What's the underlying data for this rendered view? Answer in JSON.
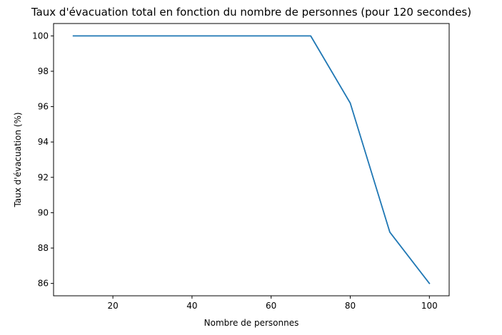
{
  "chart_data": {
    "type": "line",
    "title": "Taux d'évacuation total en fonction du nombre de personnes (pour 120 secondes)",
    "xlabel": "Nombre de personnes",
    "ylabel": "Taux d'évacuation (%)",
    "xlim": [
      5,
      105
    ],
    "ylim": [
      85.3,
      100.7
    ],
    "xticks": [
      20,
      40,
      60,
      80,
      100
    ],
    "yticks": [
      86,
      88,
      90,
      92,
      94,
      96,
      98,
      100
    ],
    "grid": false,
    "series": [
      {
        "color": "#1f77b4",
        "x": [
          10,
          20,
          30,
          40,
          50,
          60,
          70,
          80,
          90,
          100
        ],
        "y": [
          100,
          100,
          100,
          100,
          100,
          100,
          100,
          96.2,
          88.9,
          86.0
        ]
      }
    ]
  }
}
